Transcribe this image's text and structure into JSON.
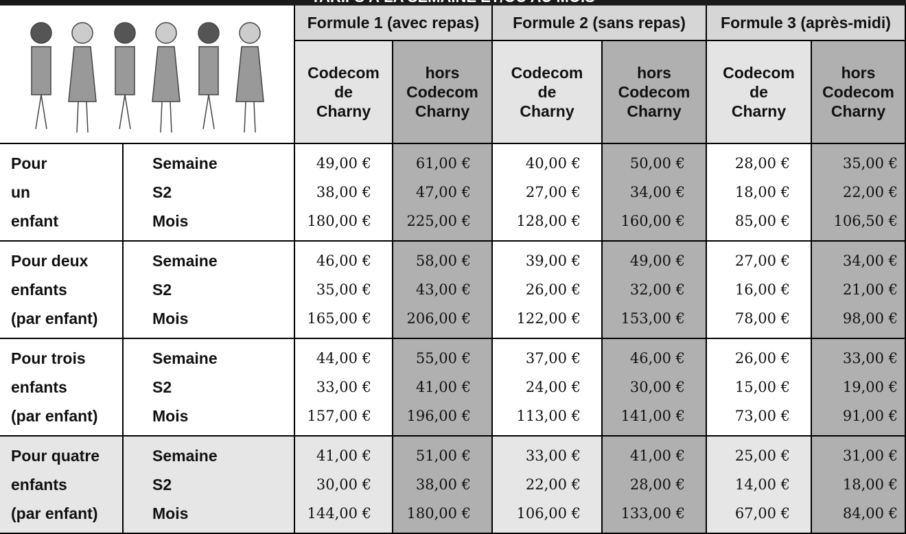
{
  "header": {
    "title": "TARIFS À LA SEMAINE ET/OU AU MOIS"
  },
  "formules": [
    "Formule 1 (avec repas)",
    "Formule 2 (sans repas)",
    "Formule 3 (après-midi)"
  ],
  "columns": [
    [
      "Codecom",
      "de",
      "Charny"
    ],
    [
      "hors",
      "Codecom",
      "Charny"
    ],
    [
      "Codecom",
      "de",
      "Charny"
    ],
    [
      "hors",
      "Codecom",
      "Charny"
    ],
    [
      "Codecom",
      "de",
      "Charny"
    ],
    [
      "hors",
      "Codecom",
      "Charny"
    ]
  ],
  "groups": [
    {
      "label": [
        "Pour",
        "un",
        "enfant"
      ],
      "periods": [
        "Semaine",
        "S2",
        "Mois"
      ],
      "rows": [
        [
          "49,00 €",
          "61,00 €",
          "40,00 €",
          "50,00 €",
          "28,00 €",
          "35,00 €"
        ],
        [
          "38,00 €",
          "47,00 €",
          "27,00 €",
          "34,00 €",
          "18,00 €",
          "22,00 €"
        ],
        [
          "180,00 €",
          "225,00 €",
          "128,00 €",
          "160,00 €",
          "85,00 €",
          "106,50 €"
        ]
      ]
    },
    {
      "label": [
        "Pour deux",
        "enfants",
        "(par enfant)"
      ],
      "periods": [
        "Semaine",
        "S2",
        "Mois"
      ],
      "rows": [
        [
          "46,00 €",
          "58,00 €",
          "39,00 €",
          "49,00 €",
          "27,00 €",
          "34,00 €"
        ],
        [
          "35,00 €",
          "43,00 €",
          "26,00 €",
          "32,00 €",
          "16,00 €",
          "21,00 €"
        ],
        [
          "165,00 €",
          "206,00 €",
          "122,00 €",
          "153,00 €",
          "78,00 €",
          "98,00 €"
        ]
      ]
    },
    {
      "label": [
        "Pour trois",
        "enfants",
        "(par enfant)"
      ],
      "periods": [
        "Semaine",
        "S2",
        "Mois"
      ],
      "rows": [
        [
          "44,00 €",
          "55,00 €",
          "37,00 €",
          "46,00 €",
          "26,00 €",
          "33,00 €"
        ],
        [
          "33,00 €",
          "41,00 €",
          "24,00 €",
          "30,00 €",
          "15,00 €",
          "19,00 €"
        ],
        [
          "157,00 €",
          "196,00 €",
          "113,00 €",
          "141,00 €",
          "73,00 €",
          "91,00 €"
        ]
      ]
    },
    {
      "label": [
        "Pour quatre",
        "enfants",
        "(par enfant)"
      ],
      "periods": [
        "Semaine",
        "S2",
        "Mois"
      ],
      "rows": [
        [
          "41,00 €",
          "51,00 €",
          "33,00 €",
          "41,00 €",
          "25,00 €",
          "31,00 €"
        ],
        [
          "30,00 €",
          "38,00 €",
          "22,00 €",
          "28,00 €",
          "14,00 €",
          "18,00 €"
        ],
        [
          "144,00 €",
          "180,00 €",
          "106,00 €",
          "133,00 €",
          "67,00 €",
          "84,00 €"
        ]
      ]
    }
  ]
}
